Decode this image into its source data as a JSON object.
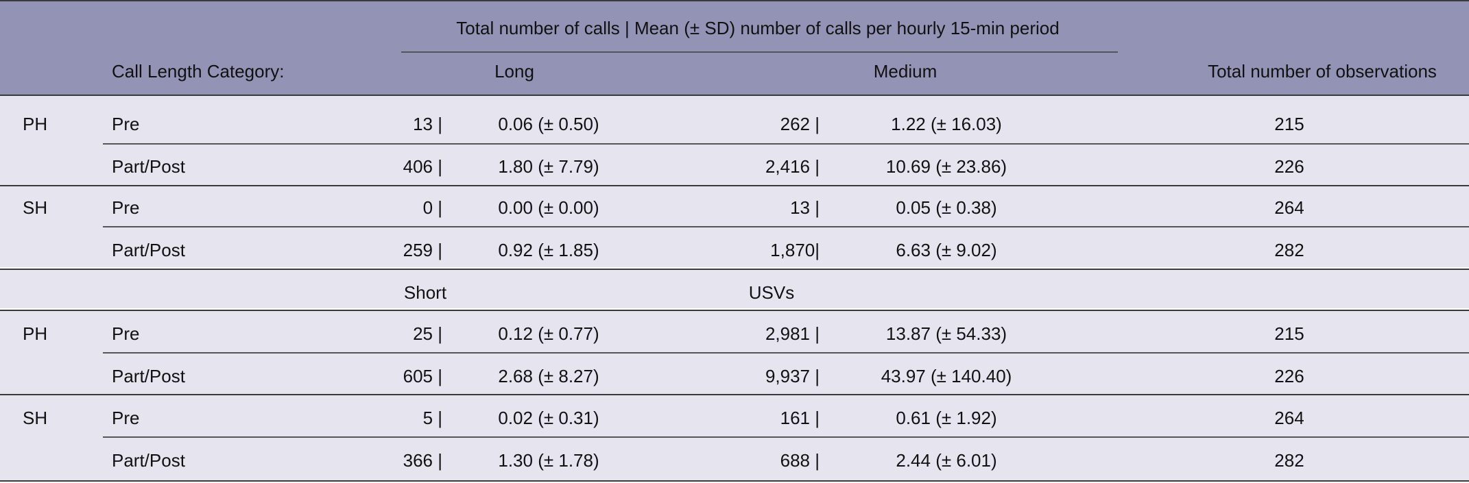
{
  "header": {
    "span_title": "Total number of calls | Mean (± SD) number of calls per hourly 15-min period",
    "row_label": "Call Length Category:",
    "col_a": "Long",
    "col_b": "Medium",
    "col_total": "Total number of observations"
  },
  "section1": {
    "rows": [
      {
        "group": "PH",
        "period": "Pre",
        "a_total": "13 |",
        "a_mean": "0.06 (± 0.50)",
        "b_total": "262 |",
        "b_mean": "1.22 (± 16.03)",
        "obs": "215"
      },
      {
        "group": "",
        "period": "Part/Post",
        "a_total": "406 |",
        "a_mean": "1.80 (± 7.79)",
        "b_total": "2,416 |",
        "b_mean": "10.69 (± 23.86)",
        "obs": "226"
      },
      {
        "group": "SH",
        "period": "Pre",
        "a_total": "0 |",
        "a_mean": "0.00 (± 0.00)",
        "b_total": "13 |",
        "b_mean": "0.05 (± 0.38)",
        "obs": "264"
      },
      {
        "group": "",
        "period": "Part/Post",
        "a_total": "259 |",
        "a_mean": "0.92 (± 1.85)",
        "b_total": "1,870|",
        "b_mean": "6.63 (± 9.02)",
        "obs": "282"
      }
    ]
  },
  "section2_header": {
    "col_a": "Short",
    "col_b": "USVs"
  },
  "section2": {
    "rows": [
      {
        "group": "PH",
        "period": "Pre",
        "a_total": "25 |",
        "a_mean": "0.12 (± 0.77)",
        "b_total": "2,981 |",
        "b_mean": "13.87 (± 54.33)",
        "obs": "215"
      },
      {
        "group": "",
        "period": "Part/Post",
        "a_total": "605 |",
        "a_mean": "2.68 (± 8.27)",
        "b_total": "9,937 |",
        "b_mean": "43.97 (± 140.40)",
        "obs": "226"
      },
      {
        "group": "SH",
        "period": "Pre",
        "a_total": "5 |",
        "a_mean": "0.02 (± 0.31)",
        "b_total": "161 |",
        "b_mean": "0.61 (± 1.92)",
        "obs": "264"
      },
      {
        "group": "",
        "period": "Part/Post",
        "a_total": "366 |",
        "a_mean": "1.30 (± 1.78)",
        "b_total": "688 |",
        "b_mean": "2.44 (± 6.01)",
        "obs": "282"
      }
    ]
  }
}
